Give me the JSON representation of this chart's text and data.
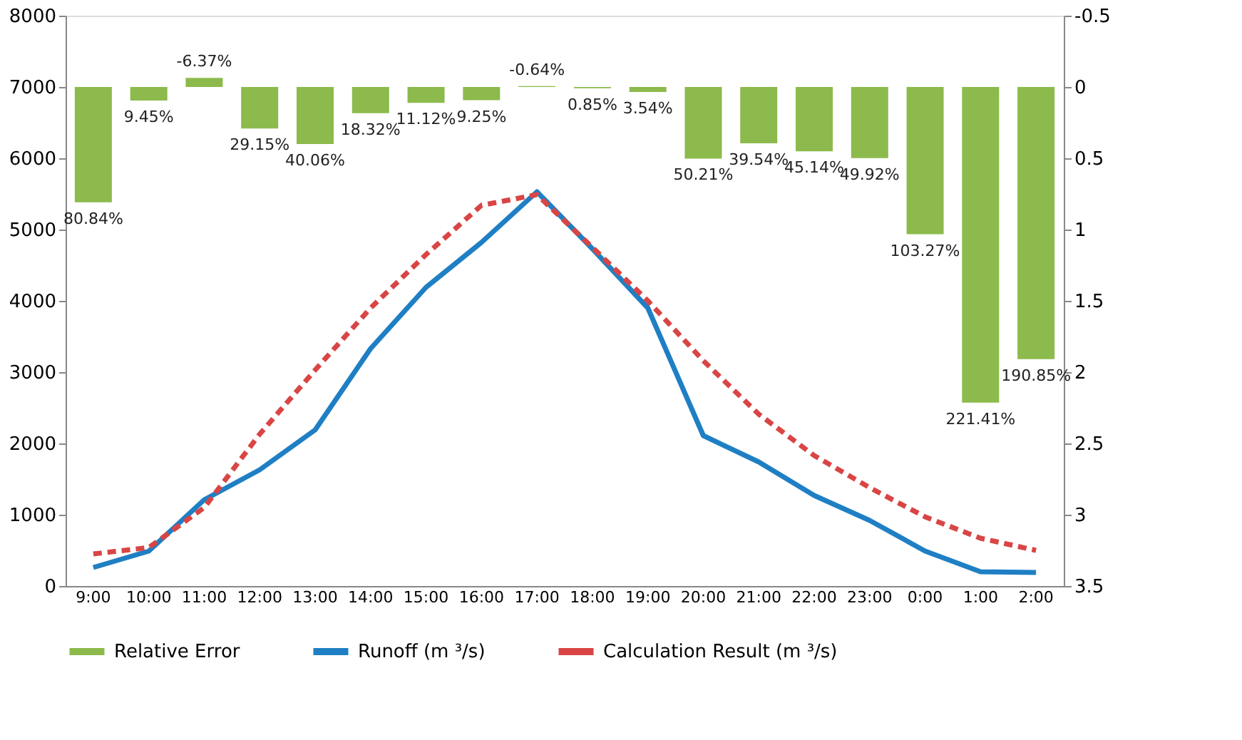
{
  "chart_data": {
    "type": "bar",
    "categories": [
      "9:00",
      "10:00",
      "11:00",
      "12:00",
      "13:00",
      "14:00",
      "15:00",
      "16:00",
      "17:00",
      "18:00",
      "19:00",
      "20:00",
      "21:00",
      "22:00",
      "23:00",
      "0:00",
      "1:00",
      "2:00"
    ],
    "series": [
      {
        "name": "Relative Error",
        "axis": "y2",
        "color": "#8cba4c",
        "values": [
          0.8084,
          0.0945,
          -0.0637,
          0.2915,
          0.4006,
          0.1832,
          0.1112,
          0.0925,
          -0.0064,
          0.0085,
          0.0354,
          0.5021,
          0.3954,
          0.4514,
          0.4992,
          1.0327,
          2.2141,
          1.9085
        ],
        "value_labels": [
          "80.84%",
          "9.45%",
          "-6.37%",
          "29.15%",
          "40.06%",
          "18.32%",
          "11.12%",
          "9.25%",
          "-0.64%",
          "0.85%",
          "3.54%",
          "50.21%",
          "39.54%",
          "45.14%",
          "49.92%",
          "103.27%",
          "221.41%",
          "190.85%"
        ]
      },
      {
        "name": "Runoff (m ³/s)",
        "type": "line",
        "color": "#1f7fc4",
        "line_style": "solid",
        "values": [
          260,
          490,
          1210,
          1630,
          2190,
          3330,
          4190,
          4820,
          5530,
          4730,
          3900,
          2110,
          1740,
          1270,
          920,
          490,
          200,
          190
        ]
      },
      {
        "name": "Calculation Result (m ³/s)",
        "type": "line",
        "color": "#d94545",
        "line_style": "dashed",
        "values": [
          450,
          540,
          1100,
          2130,
          3030,
          3900,
          4650,
          5340,
          5490,
          4750,
          4000,
          3160,
          2410,
          1830,
          1380,
          970,
          670,
          500
        ]
      }
    ],
    "ylim": [
      0,
      8000
    ],
    "yticks": [
      0,
      1000,
      2000,
      3000,
      4000,
      5000,
      6000,
      7000,
      8000
    ],
    "y2lim": [
      3.5,
      -0.5
    ],
    "y2ticks": [
      -0.5,
      0,
      0.5,
      1,
      1.5,
      2,
      2.5,
      3,
      3.5
    ],
    "grid": false,
    "legend": "bottom"
  }
}
